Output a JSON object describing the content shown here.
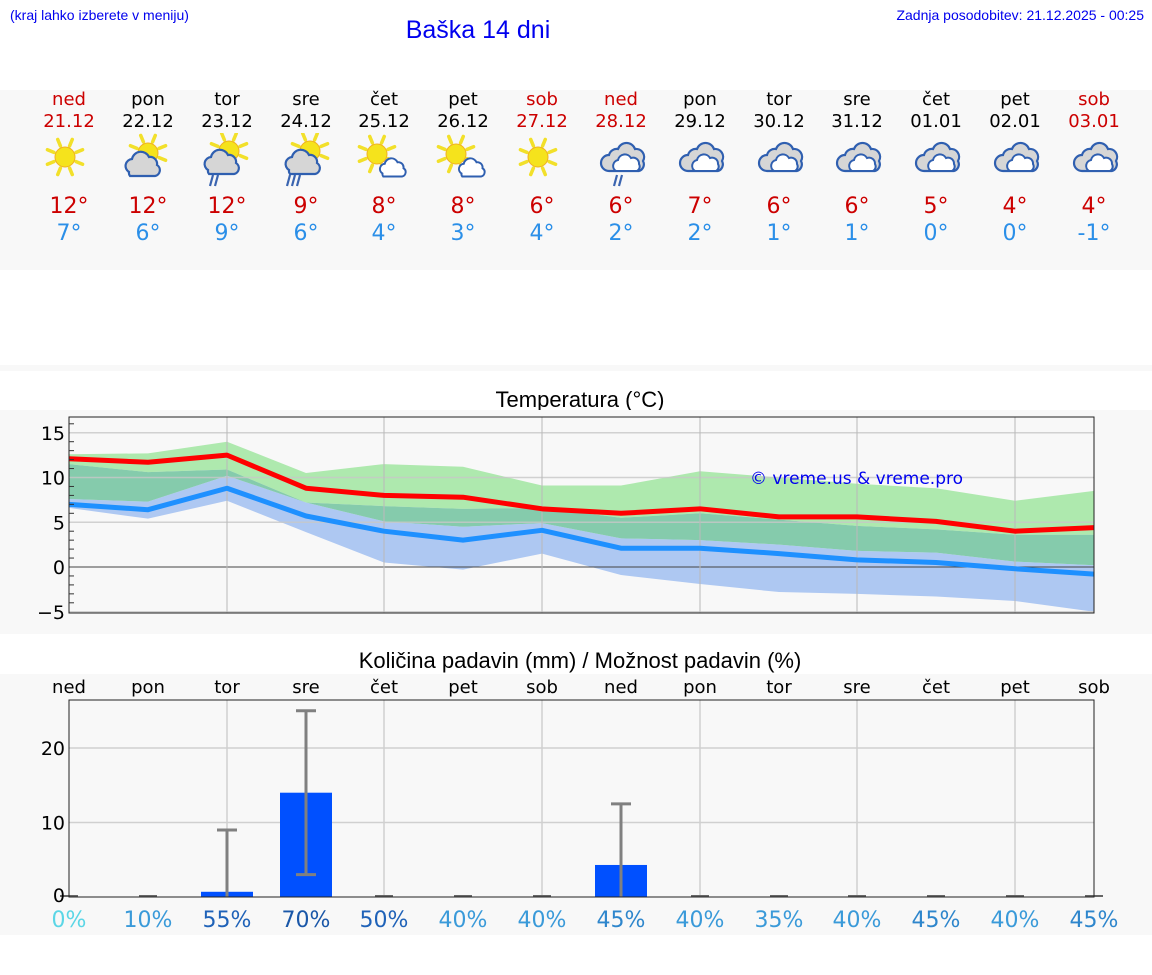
{
  "header": {
    "hint": "(kraj lahko izberete v meniju)",
    "title": "Baška 14 dni",
    "updated": "Zadnja posodobitev: 21.12.2025 - 00:25"
  },
  "days": [
    {
      "name": "ned",
      "date": "21.12",
      "icon": "sun-icon",
      "tmax": "12°",
      "tmin": "7°",
      "weekend": true
    },
    {
      "name": "pon",
      "date": "22.12",
      "icon": "sun-cloud-icon",
      "tmax": "12°",
      "tmin": "6°",
      "weekend": false
    },
    {
      "name": "tor",
      "date": "23.12",
      "icon": "sun-cloud-light-rain-icon",
      "tmax": "12°",
      "tmin": "9°",
      "weekend": false
    },
    {
      "name": "sre",
      "date": "24.12",
      "icon": "sun-cloud-rain-icon",
      "tmax": "9°",
      "tmin": "6°",
      "weekend": false
    },
    {
      "name": "čet",
      "date": "25.12",
      "icon": "sun-small-cloud-icon",
      "tmax": "8°",
      "tmin": "4°",
      "weekend": false
    },
    {
      "name": "pet",
      "date": "26.12",
      "icon": "sun-small-cloud-icon",
      "tmax": "8°",
      "tmin": "3°",
      "weekend": false
    },
    {
      "name": "sob",
      "date": "27.12",
      "icon": "sun-icon",
      "tmax": "6°",
      "tmin": "4°",
      "weekend": true
    },
    {
      "name": "ned",
      "date": "28.12",
      "icon": "cloud-light-rain-icon",
      "tmax": "6°",
      "tmin": "2°",
      "weekend": true
    },
    {
      "name": "pon",
      "date": "29.12",
      "icon": "cloudy-icon",
      "tmax": "7°",
      "tmin": "2°",
      "weekend": false
    },
    {
      "name": "tor",
      "date": "30.12",
      "icon": "cloudy-icon",
      "tmax": "6°",
      "tmin": "1°",
      "weekend": false
    },
    {
      "name": "sre",
      "date": "31.12",
      "icon": "cloudy-icon",
      "tmax": "6°",
      "tmin": "1°",
      "weekend": false
    },
    {
      "name": "čet",
      "date": "01.01",
      "icon": "cloudy-icon",
      "tmax": "5°",
      "tmin": "0°",
      "weekend": false
    },
    {
      "name": "pet",
      "date": "02.01",
      "icon": "cloudy-icon",
      "tmax": "4°",
      "tmin": "0°",
      "weekend": false
    },
    {
      "name": "sob",
      "date": "03.01",
      "icon": "cloudy-icon",
      "tmax": "4°",
      "tmin": "-1°",
      "weekend": true
    }
  ],
  "colors": {
    "link_blue": "#0000ee",
    "max_red": "#cc0000",
    "min_blue": "#2b8fe8",
    "line_red": "#ff0000",
    "line_blue": "#1e90ff",
    "band_green": "#aee9ae",
    "band_blue": "#aec8f2",
    "band_overlap": "#7ec8a8",
    "bar_blue": "#0050ff",
    "err_gray": "#808080"
  },
  "chart_data": [
    {
      "type": "line",
      "title": "Temperatura (°C)",
      "xlabel": "",
      "ylabel": "",
      "ylim": [
        -5,
        17
      ],
      "yticks": [
        -5,
        0,
        5,
        10,
        15
      ],
      "grid": true,
      "watermark": "© vreme.us & vreme.pro",
      "categories": [
        "21.12",
        "22.12",
        "23.12",
        "24.12",
        "25.12",
        "26.12",
        "27.12",
        "28.12",
        "29.12",
        "30.12",
        "31.12",
        "01.01",
        "02.01",
        "03.01"
      ],
      "series": [
        {
          "name": "max",
          "color": "#ff0000",
          "values": [
            12.1,
            11.7,
            12.5,
            8.8,
            8.0,
            7.8,
            6.5,
            6.0,
            6.5,
            5.6,
            5.6,
            5.1,
            4.0,
            4.4
          ]
        },
        {
          "name": "max_range_high",
          "color": "#aee9ae",
          "values": [
            12.6,
            12.7,
            14.0,
            10.5,
            11.5,
            11.2,
            9.1,
            9.1,
            10.7,
            10.0,
            9.3,
            8.8,
            7.4,
            8.5
          ]
        },
        {
          "name": "max_range_low",
          "color": "#aee9ae",
          "values": [
            11.5,
            10.6,
            10.9,
            7.2,
            6.8,
            6.5,
            6.6,
            5.5,
            6.0,
            5.3,
            4.6,
            4.2,
            3.6,
            3.6
          ]
        },
        {
          "name": "min",
          "color": "#1e90ff",
          "values": [
            7.0,
            6.4,
            8.8,
            5.7,
            4.0,
            3.0,
            4.1,
            2.1,
            2.1,
            1.5,
            0.8,
            0.5,
            -0.2,
            -0.8
          ]
        },
        {
          "name": "min_range_high",
          "color": "#aec8f2",
          "values": [
            7.6,
            7.3,
            10.2,
            7.2,
            5.1,
            4.5,
            4.9,
            3.2,
            3.0,
            2.5,
            1.8,
            1.6,
            0.6,
            0.2
          ]
        },
        {
          "name": "min_range_low",
          "color": "#aec8f2",
          "values": [
            6.6,
            5.4,
            7.4,
            3.9,
            0.5,
            -0.3,
            1.5,
            -0.9,
            -1.9,
            -2.8,
            -3.0,
            -3.3,
            -3.8,
            -5.0
          ]
        }
      ]
    },
    {
      "type": "bar",
      "title": "Količina padavin (mm) / Možnost padavin (%)",
      "xlabel": "",
      "ylabel": "",
      "ylim": [
        0,
        26
      ],
      "yticks": [
        0,
        10,
        20
      ],
      "grid": true,
      "categories": [
        "ned",
        "pon",
        "tor",
        "sre",
        "čet",
        "pet",
        "sob",
        "ned",
        "pon",
        "tor",
        "sre",
        "čet",
        "pet",
        "sob"
      ],
      "values": [
        0,
        0,
        0.7,
        14,
        0,
        0,
        0,
        4.3,
        0,
        0,
        0,
        0,
        0,
        0
      ],
      "error_low": [
        0,
        0,
        0,
        3,
        0,
        0,
        0,
        0,
        0,
        0,
        0,
        0,
        0,
        0
      ],
      "error_high": [
        0,
        0,
        9,
        25,
        0,
        0,
        0,
        12.5,
        0,
        0,
        0,
        0,
        0,
        0
      ],
      "probability": [
        "0%",
        "10%",
        "55%",
        "70%",
        "50%",
        "40%",
        "40%",
        "45%",
        "40%",
        "35%",
        "40%",
        "45%",
        "40%",
        "45%"
      ],
      "probability_colors": [
        "#5bd6e6",
        "#3a9ad9",
        "#1f62b8",
        "#1a57a8",
        "#1f62b8",
        "#3a9ad9",
        "#3a9ad9",
        "#2e86cc",
        "#3a9ad9",
        "#3a9ad9",
        "#3a9ad9",
        "#2e86cc",
        "#3a9ad9",
        "#2e86cc"
      ]
    }
  ]
}
